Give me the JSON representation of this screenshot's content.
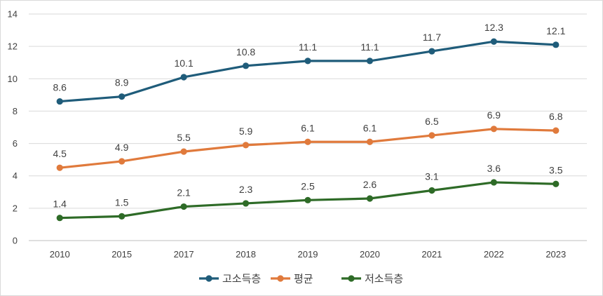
{
  "chart_data": {
    "type": "line",
    "categories": [
      "2010",
      "2015",
      "2017",
      "2018",
      "2019",
      "2020",
      "2021",
      "2022",
      "2023"
    ],
    "series": [
      {
        "name": "고소득층",
        "color": "#1f5c7a",
        "values": [
          8.6,
          8.9,
          10.1,
          10.8,
          11.1,
          11.1,
          11.7,
          12.3,
          12.1
        ]
      },
      {
        "name": "평균",
        "color": "#e07a3c",
        "values": [
          4.5,
          4.9,
          5.5,
          5.9,
          6.1,
          6.1,
          6.5,
          6.9,
          6.8
        ]
      },
      {
        "name": "저소득층",
        "color": "#2e6b27",
        "values": [
          1.4,
          1.5,
          2.1,
          2.3,
          2.5,
          2.6,
          3.1,
          3.6,
          3.5
        ]
      }
    ],
    "ylim": [
      0,
      14
    ],
    "yticks": [
      0,
      2,
      4,
      6,
      8,
      10,
      12,
      14
    ],
    "grid": true,
    "legend": "bottom"
  }
}
